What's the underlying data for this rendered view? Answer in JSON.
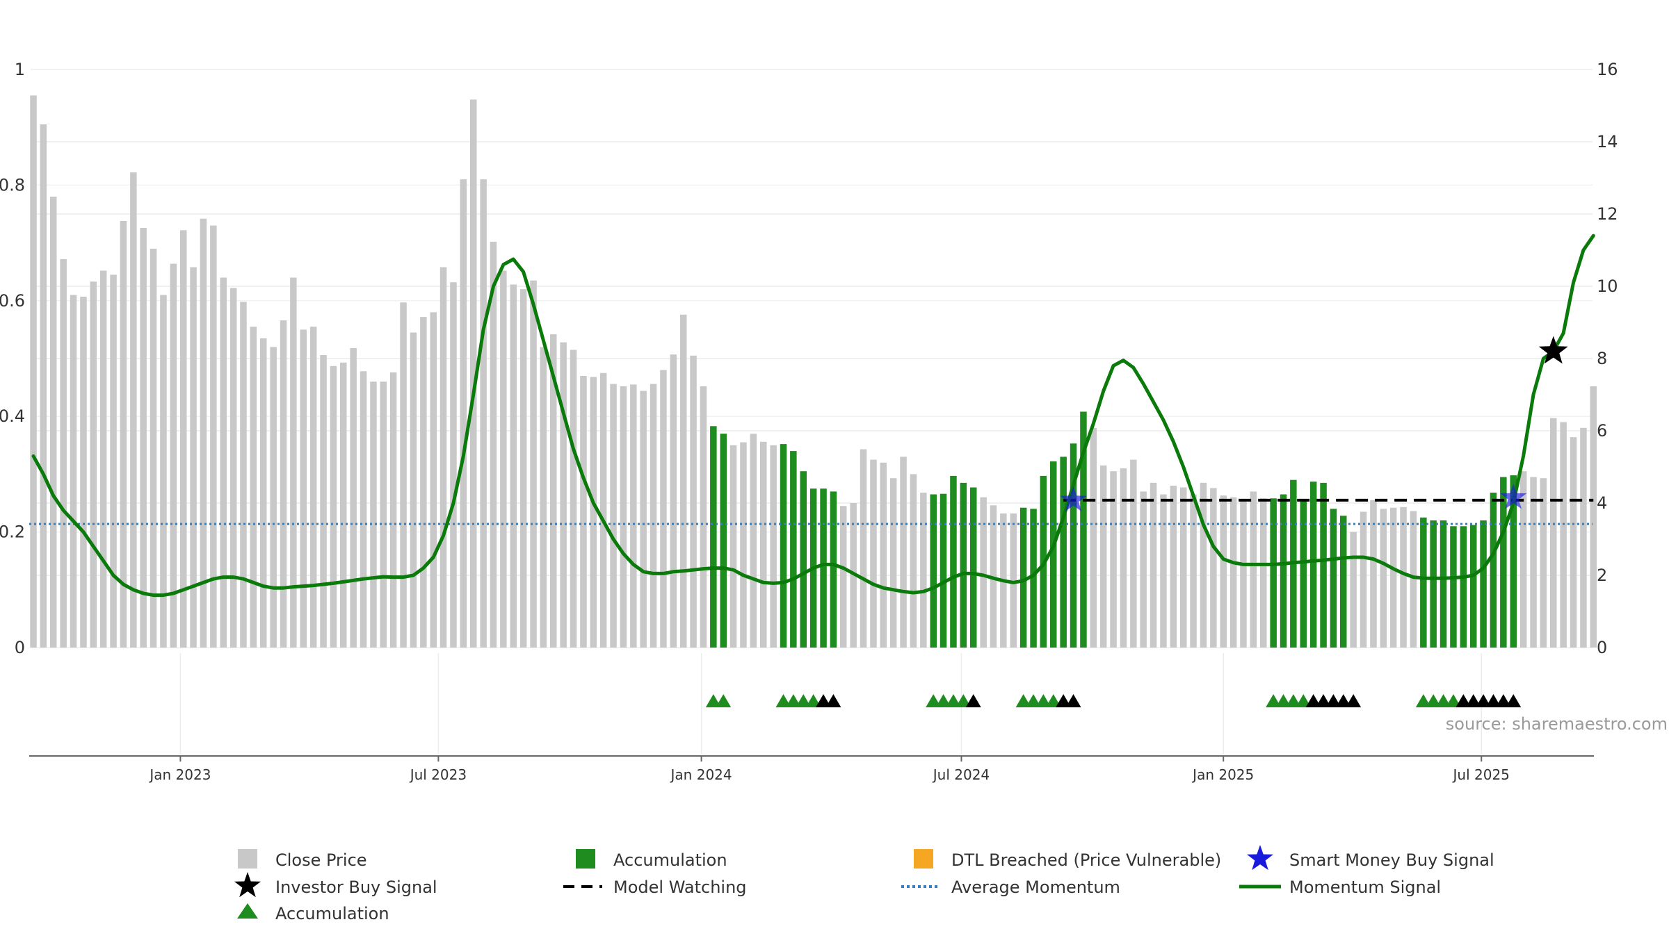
{
  "source_label": "source: sharemaestro.com",
  "legend": {
    "close_price": "Close Price",
    "accumulation_bar": "Accumulation",
    "dtl_breached": "DTL Breached (Price Vulnerable)",
    "smart_money": "Smart Money Buy Signal",
    "investor_buy": "Investor Buy Signal",
    "model_watching": "Model Watching",
    "average_momentum": "Average Momentum",
    "momentum_signal": "Momentum Signal",
    "accumulation_marker": "Accumulation"
  },
  "colors": {
    "close_bar": "#c8c8c8",
    "accumulation": "#1e8c1e",
    "dtl": "#f5a623",
    "smart_money": "#1a1adc",
    "investor": "#000000",
    "average_momentum": "#3a7dbf",
    "momentum": "#0a7a0a"
  },
  "chart_data": {
    "type": "bar",
    "y_left": {
      "ylim": [
        0,
        1
      ],
      "ticks": [
        0,
        0.2,
        0.4,
        0.6,
        0.8,
        1
      ],
      "tick_labels": [
        "0",
        "0.2",
        "0.4",
        "0.6",
        "0.8",
        "1"
      ]
    },
    "y_right": {
      "ylim": [
        0,
        16
      ],
      "ticks": [
        0,
        2,
        4,
        6,
        8,
        10,
        12,
        14,
        16
      ],
      "tick_labels": [
        "0",
        "2",
        "4",
        "6",
        "8",
        "10",
        "12",
        "14",
        "16"
      ]
    },
    "x_ticks": [
      {
        "label": "Jan 2023",
        "week": 14.7
      },
      {
        "label": "Jul 2023",
        "week": 40.5
      },
      {
        "label": "Jan 2024",
        "week": 66.8
      },
      {
        "label": "Jul 2024",
        "week": 92.8
      },
      {
        "label": "Jan 2025",
        "week": 119.0
      },
      {
        "label": "Jul 2025",
        "week": 144.8
      }
    ],
    "grid": "horizontal",
    "close_price": [
      0.955,
      0.905,
      0.78,
      0.672,
      0.61,
      0.607,
      0.633,
      0.652,
      0.645,
      0.738,
      0.822,
      0.726,
      0.69,
      0.61,
      0.664,
      0.722,
      0.658,
      0.742,
      0.73,
      0.64,
      0.622,
      0.598,
      0.555,
      0.535,
      0.52,
      0.566,
      0.64,
      0.55,
      0.555,
      0.506,
      0.487,
      0.493,
      0.518,
      0.478,
      0.46,
      0.46,
      0.476,
      0.597,
      0.545,
      0.572,
      0.58,
      0.658,
      0.632,
      0.81,
      0.948,
      0.81,
      0.702,
      0.652,
      0.628,
      0.62,
      0.635,
      0.52,
      0.542,
      0.528,
      0.515,
      0.47,
      0.468,
      0.475,
      0.456,
      0.452,
      0.455,
      0.444,
      0.456,
      0.48,
      0.507,
      0.576,
      0.505,
      0.452,
      0.383,
      0.37,
      0.35,
      0.355,
      0.37,
      0.356,
      0.35,
      0.352,
      0.34,
      0.305,
      0.275,
      0.275,
      0.27,
      0.245,
      0.25,
      0.343,
      0.325,
      0.32,
      0.293,
      0.33,
      0.3,
      0.268,
      0.265,
      0.266,
      0.297,
      0.285,
      0.277,
      0.26,
      0.246,
      0.232,
      0.232,
      0.242,
      0.24,
      0.297,
      0.322,
      0.33,
      0.353,
      0.408,
      0.38,
      0.315,
      0.305,
      0.31,
      0.325,
      0.27,
      0.285,
      0.265,
      0.28,
      0.277,
      0.265,
      0.285,
      0.276,
      0.263,
      0.26,
      0.255,
      0.27,
      0.258,
      0.258,
      0.265,
      0.29,
      0.255,
      0.287,
      0.285,
      0.24,
      0.228,
      0.2,
      0.235,
      0.255,
      0.24,
      0.242,
      0.243,
      0.236,
      0.225,
      0.22,
      0.22,
      0.21,
      0.21,
      0.212,
      0.22,
      0.268,
      0.295,
      0.298,
      0.305,
      0.295,
      0.293,
      0.397,
      0.39,
      0.364,
      0.38,
      0.452
    ],
    "accumulation_weeks": [
      68,
      69,
      75,
      76,
      77,
      78,
      79,
      80,
      90,
      91,
      92,
      93,
      94,
      99,
      100,
      101,
      102,
      103,
      104,
      105,
      124,
      125,
      126,
      127,
      128,
      129,
      130,
      131,
      139,
      140,
      141,
      142,
      143,
      144,
      145,
      146,
      147,
      148
    ],
    "momentum_signal": {
      "points": [
        [
          0,
          5.3
        ],
        [
          1,
          4.8
        ],
        [
          2,
          4.2
        ],
        [
          3,
          3.8
        ],
        [
          4,
          3.5
        ],
        [
          5,
          3.2
        ],
        [
          6,
          2.8
        ],
        [
          7,
          2.4
        ],
        [
          8,
          2.0
        ],
        [
          9,
          1.75
        ],
        [
          10,
          1.6
        ],
        [
          11,
          1.5
        ],
        [
          12,
          1.45
        ],
        [
          13,
          1.45
        ],
        [
          14,
          1.5
        ],
        [
          15,
          1.6
        ],
        [
          16,
          1.7
        ],
        [
          17,
          1.8
        ],
        [
          18,
          1.9
        ],
        [
          19,
          1.95
        ],
        [
          20,
          1.95
        ],
        [
          21,
          1.9
        ],
        [
          22,
          1.8
        ],
        [
          23,
          1.7
        ],
        [
          24,
          1.65
        ],
        [
          25,
          1.65
        ],
        [
          26,
          1.68
        ],
        [
          27,
          1.7
        ],
        [
          28,
          1.72
        ],
        [
          29,
          1.75
        ],
        [
          30,
          1.78
        ],
        [
          31,
          1.82
        ],
        [
          32,
          1.86
        ],
        [
          33,
          1.9
        ],
        [
          34,
          1.93
        ],
        [
          35,
          1.96
        ],
        [
          36,
          1.95
        ],
        [
          37,
          1.95
        ],
        [
          38,
          2.0
        ],
        [
          39,
          2.2
        ],
        [
          40,
          2.5
        ],
        [
          41,
          3.1
        ],
        [
          42,
          4.0
        ],
        [
          43,
          5.3
        ],
        [
          44,
          7.0
        ],
        [
          45,
          8.8
        ],
        [
          46,
          10.0
        ],
        [
          47,
          10.6
        ],
        [
          48,
          10.75
        ],
        [
          49,
          10.4
        ],
        [
          50,
          9.5
        ],
        [
          51,
          8.5
        ],
        [
          52,
          7.5
        ],
        [
          53,
          6.5
        ],
        [
          54,
          5.5
        ],
        [
          55,
          4.7
        ],
        [
          56,
          4.0
        ],
        [
          57,
          3.5
        ],
        [
          58,
          3.0
        ],
        [
          59,
          2.6
        ],
        [
          60,
          2.3
        ],
        [
          61,
          2.1
        ],
        [
          62,
          2.05
        ],
        [
          63,
          2.05
        ],
        [
          64,
          2.1
        ],
        [
          65,
          2.12
        ],
        [
          66,
          2.15
        ],
        [
          67,
          2.18
        ],
        [
          68,
          2.2
        ],
        [
          69,
          2.2
        ],
        [
          70,
          2.15
        ],
        [
          71,
          2.0
        ],
        [
          72,
          1.9
        ],
        [
          73,
          1.8
        ],
        [
          74,
          1.78
        ],
        [
          75,
          1.8
        ],
        [
          76,
          1.9
        ],
        [
          77,
          2.05
        ],
        [
          78,
          2.2
        ],
        [
          79,
          2.3
        ],
        [
          80,
          2.3
        ],
        [
          81,
          2.2
        ],
        [
          82,
          2.05
        ],
        [
          83,
          1.9
        ],
        [
          84,
          1.75
        ],
        [
          85,
          1.65
        ],
        [
          86,
          1.6
        ],
        [
          87,
          1.55
        ],
        [
          88,
          1.52
        ],
        [
          89,
          1.55
        ],
        [
          90,
          1.65
        ],
        [
          91,
          1.8
        ],
        [
          92,
          1.95
        ],
        [
          93,
          2.05
        ],
        [
          94,
          2.05
        ],
        [
          95,
          2.0
        ],
        [
          96,
          1.92
        ],
        [
          97,
          1.85
        ],
        [
          98,
          1.8
        ],
        [
          99,
          1.85
        ],
        [
          100,
          2.0
        ],
        [
          101,
          2.3
        ],
        [
          102,
          2.8
        ],
        [
          103,
          3.6
        ],
        [
          104,
          4.5
        ],
        [
          105,
          5.4
        ],
        [
          106,
          6.2
        ],
        [
          107,
          7.1
        ],
        [
          108,
          7.8
        ],
        [
          109,
          7.95
        ],
        [
          110,
          7.75
        ],
        [
          111,
          7.3
        ],
        [
          112,
          6.8
        ],
        [
          113,
          6.3
        ],
        [
          114,
          5.7
        ],
        [
          115,
          5.0
        ],
        [
          116,
          4.2
        ],
        [
          117,
          3.4
        ],
        [
          118,
          2.8
        ],
        [
          119,
          2.45
        ],
        [
          120,
          2.35
        ],
        [
          121,
          2.3
        ],
        [
          122,
          2.3
        ],
        [
          123,
          2.3
        ],
        [
          124,
          2.3
        ],
        [
          125,
          2.32
        ],
        [
          126,
          2.35
        ],
        [
          127,
          2.37
        ],
        [
          128,
          2.4
        ],
        [
          129,
          2.42
        ],
        [
          130,
          2.45
        ],
        [
          131,
          2.48
        ],
        [
          132,
          2.5
        ],
        [
          133,
          2.5
        ],
        [
          134,
          2.45
        ],
        [
          135,
          2.33
        ],
        [
          136,
          2.18
        ],
        [
          137,
          2.05
        ],
        [
          138,
          1.95
        ],
        [
          139,
          1.92
        ],
        [
          140,
          1.92
        ],
        [
          141,
          1.92
        ],
        [
          142,
          1.93
        ],
        [
          143,
          1.95
        ],
        [
          144,
          2.0
        ],
        [
          145,
          2.2
        ],
        [
          146,
          2.6
        ],
        [
          147,
          3.2
        ],
        [
          148,
          4.0
        ],
        [
          149,
          5.3
        ],
        [
          150,
          7.0
        ],
        [
          151,
          8.0
        ],
        [
          152,
          8.2
        ],
        [
          153,
          8.7
        ],
        [
          154,
          10.1
        ],
        [
          155,
          11.0
        ],
        [
          156,
          11.4
        ]
      ]
    },
    "average_momentum": 3.42,
    "model_watching": {
      "from_week": 103,
      "to_week": 156,
      "value": 4.08
    },
    "smart_money_signals": [
      {
        "week": 104,
        "value": 4.08
      },
      {
        "week": 148,
        "value": 4.15
      }
    ],
    "investor_buy_signals": [
      {
        "week": 152,
        "value": 8.2
      }
    ],
    "markers": {
      "accumulation_green": [
        68,
        69,
        75,
        76,
        77,
        78,
        90,
        91,
        92,
        93,
        99,
        100,
        101,
        102,
        124,
        125,
        126,
        127,
        139,
        140,
        141,
        142
      ],
      "watching_black": [
        79,
        80,
        94,
        103,
        104,
        128,
        129,
        130,
        131,
        132,
        143,
        144,
        145,
        146,
        147,
        148
      ]
    }
  }
}
